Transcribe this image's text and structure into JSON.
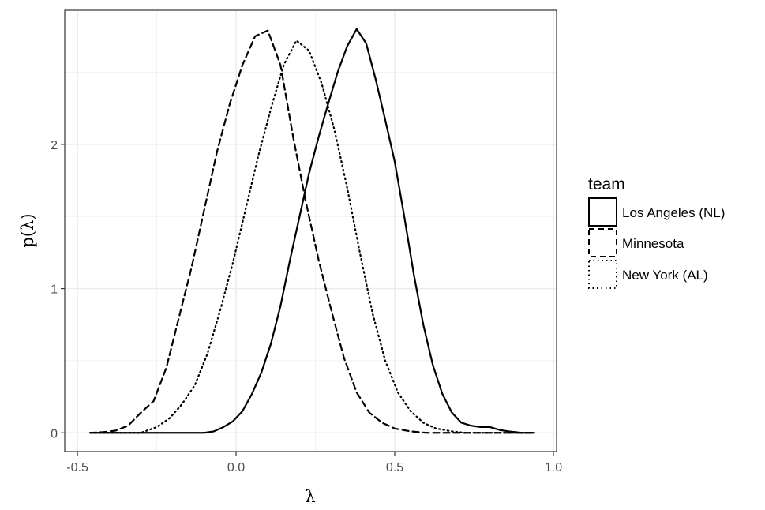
{
  "chart_data": {
    "type": "line",
    "title": "",
    "xlabel": "λ",
    "ylabel": "p(λ)",
    "xlim": [
      -0.54,
      1.01
    ],
    "ylim": [
      -0.13,
      2.93
    ],
    "x_ticks": [
      -0.5,
      0.0,
      0.5,
      1.0
    ],
    "x_tick_labels": [
      "-0.5",
      "0.0",
      "0.5",
      "1.0"
    ],
    "y_ticks": [
      0,
      1,
      2
    ],
    "y_tick_labels": [
      "0",
      "1",
      "2"
    ],
    "grid": true,
    "legend": {
      "title": "team",
      "placement": "right",
      "entries": [
        "Los Angeles (NL)",
        "Minnesota",
        "New York (AL)"
      ]
    },
    "series": [
      {
        "name": "Los Angeles (NL)",
        "dash": "solid",
        "points": [
          [
            -0.46,
            0
          ],
          [
            -0.1,
            0
          ],
          [
            -0.07,
            0.01
          ],
          [
            -0.04,
            0.04
          ],
          [
            -0.01,
            0.08
          ],
          [
            0.02,
            0.15
          ],
          [
            0.05,
            0.27
          ],
          [
            0.08,
            0.42
          ],
          [
            0.11,
            0.62
          ],
          [
            0.14,
            0.88
          ],
          [
            0.17,
            1.2
          ],
          [
            0.2,
            1.5
          ],
          [
            0.23,
            1.8
          ],
          [
            0.26,
            2.05
          ],
          [
            0.29,
            2.28
          ],
          [
            0.32,
            2.5
          ],
          [
            0.35,
            2.68
          ],
          [
            0.38,
            2.8
          ],
          [
            0.41,
            2.7
          ],
          [
            0.44,
            2.45
          ],
          [
            0.47,
            2.17
          ],
          [
            0.5,
            1.88
          ],
          [
            0.53,
            1.5
          ],
          [
            0.56,
            1.1
          ],
          [
            0.59,
            0.75
          ],
          [
            0.62,
            0.47
          ],
          [
            0.65,
            0.27
          ],
          [
            0.68,
            0.14
          ],
          [
            0.71,
            0.07
          ],
          [
            0.74,
            0.05
          ],
          [
            0.77,
            0.04
          ],
          [
            0.8,
            0.04
          ],
          [
            0.83,
            0.02
          ],
          [
            0.86,
            0.01
          ],
          [
            0.9,
            0
          ],
          [
            0.94,
            0
          ]
        ]
      },
      {
        "name": "Minnesota",
        "dash": "dashed",
        "points": [
          [
            -0.46,
            0
          ],
          [
            -0.42,
            0.005
          ],
          [
            -0.38,
            0.015
          ],
          [
            -0.34,
            0.05
          ],
          [
            -0.3,
            0.14
          ],
          [
            -0.26,
            0.22
          ],
          [
            -0.22,
            0.45
          ],
          [
            -0.18,
            0.8
          ],
          [
            -0.14,
            1.15
          ],
          [
            -0.1,
            1.55
          ],
          [
            -0.06,
            1.95
          ],
          [
            -0.02,
            2.28
          ],
          [
            0.02,
            2.55
          ],
          [
            0.06,
            2.75
          ],
          [
            0.1,
            2.79
          ],
          [
            0.14,
            2.55
          ],
          [
            0.18,
            2.05
          ],
          [
            0.22,
            1.6
          ],
          [
            0.26,
            1.2
          ],
          [
            0.3,
            0.85
          ],
          [
            0.34,
            0.52
          ],
          [
            0.38,
            0.28
          ],
          [
            0.42,
            0.14
          ],
          [
            0.46,
            0.07
          ],
          [
            0.5,
            0.03
          ],
          [
            0.55,
            0.01
          ],
          [
            0.6,
            0
          ],
          [
            0.94,
            0
          ]
        ]
      },
      {
        "name": "New York (AL)",
        "dash": "dotted",
        "points": [
          [
            -0.46,
            0
          ],
          [
            -0.3,
            0
          ],
          [
            -0.25,
            0.04
          ],
          [
            -0.21,
            0.1
          ],
          [
            -0.17,
            0.2
          ],
          [
            -0.13,
            0.33
          ],
          [
            -0.09,
            0.55
          ],
          [
            -0.05,
            0.85
          ],
          [
            -0.01,
            1.18
          ],
          [
            0.03,
            1.55
          ],
          [
            0.07,
            1.92
          ],
          [
            0.11,
            2.25
          ],
          [
            0.15,
            2.55
          ],
          [
            0.19,
            2.72
          ],
          [
            0.23,
            2.65
          ],
          [
            0.27,
            2.42
          ],
          [
            0.31,
            2.1
          ],
          [
            0.35,
            1.7
          ],
          [
            0.39,
            1.25
          ],
          [
            0.43,
            0.83
          ],
          [
            0.47,
            0.5
          ],
          [
            0.51,
            0.28
          ],
          [
            0.55,
            0.15
          ],
          [
            0.59,
            0.07
          ],
          [
            0.63,
            0.03
          ],
          [
            0.68,
            0.01
          ],
          [
            0.72,
            0
          ],
          [
            0.94,
            0
          ]
        ]
      }
    ]
  }
}
